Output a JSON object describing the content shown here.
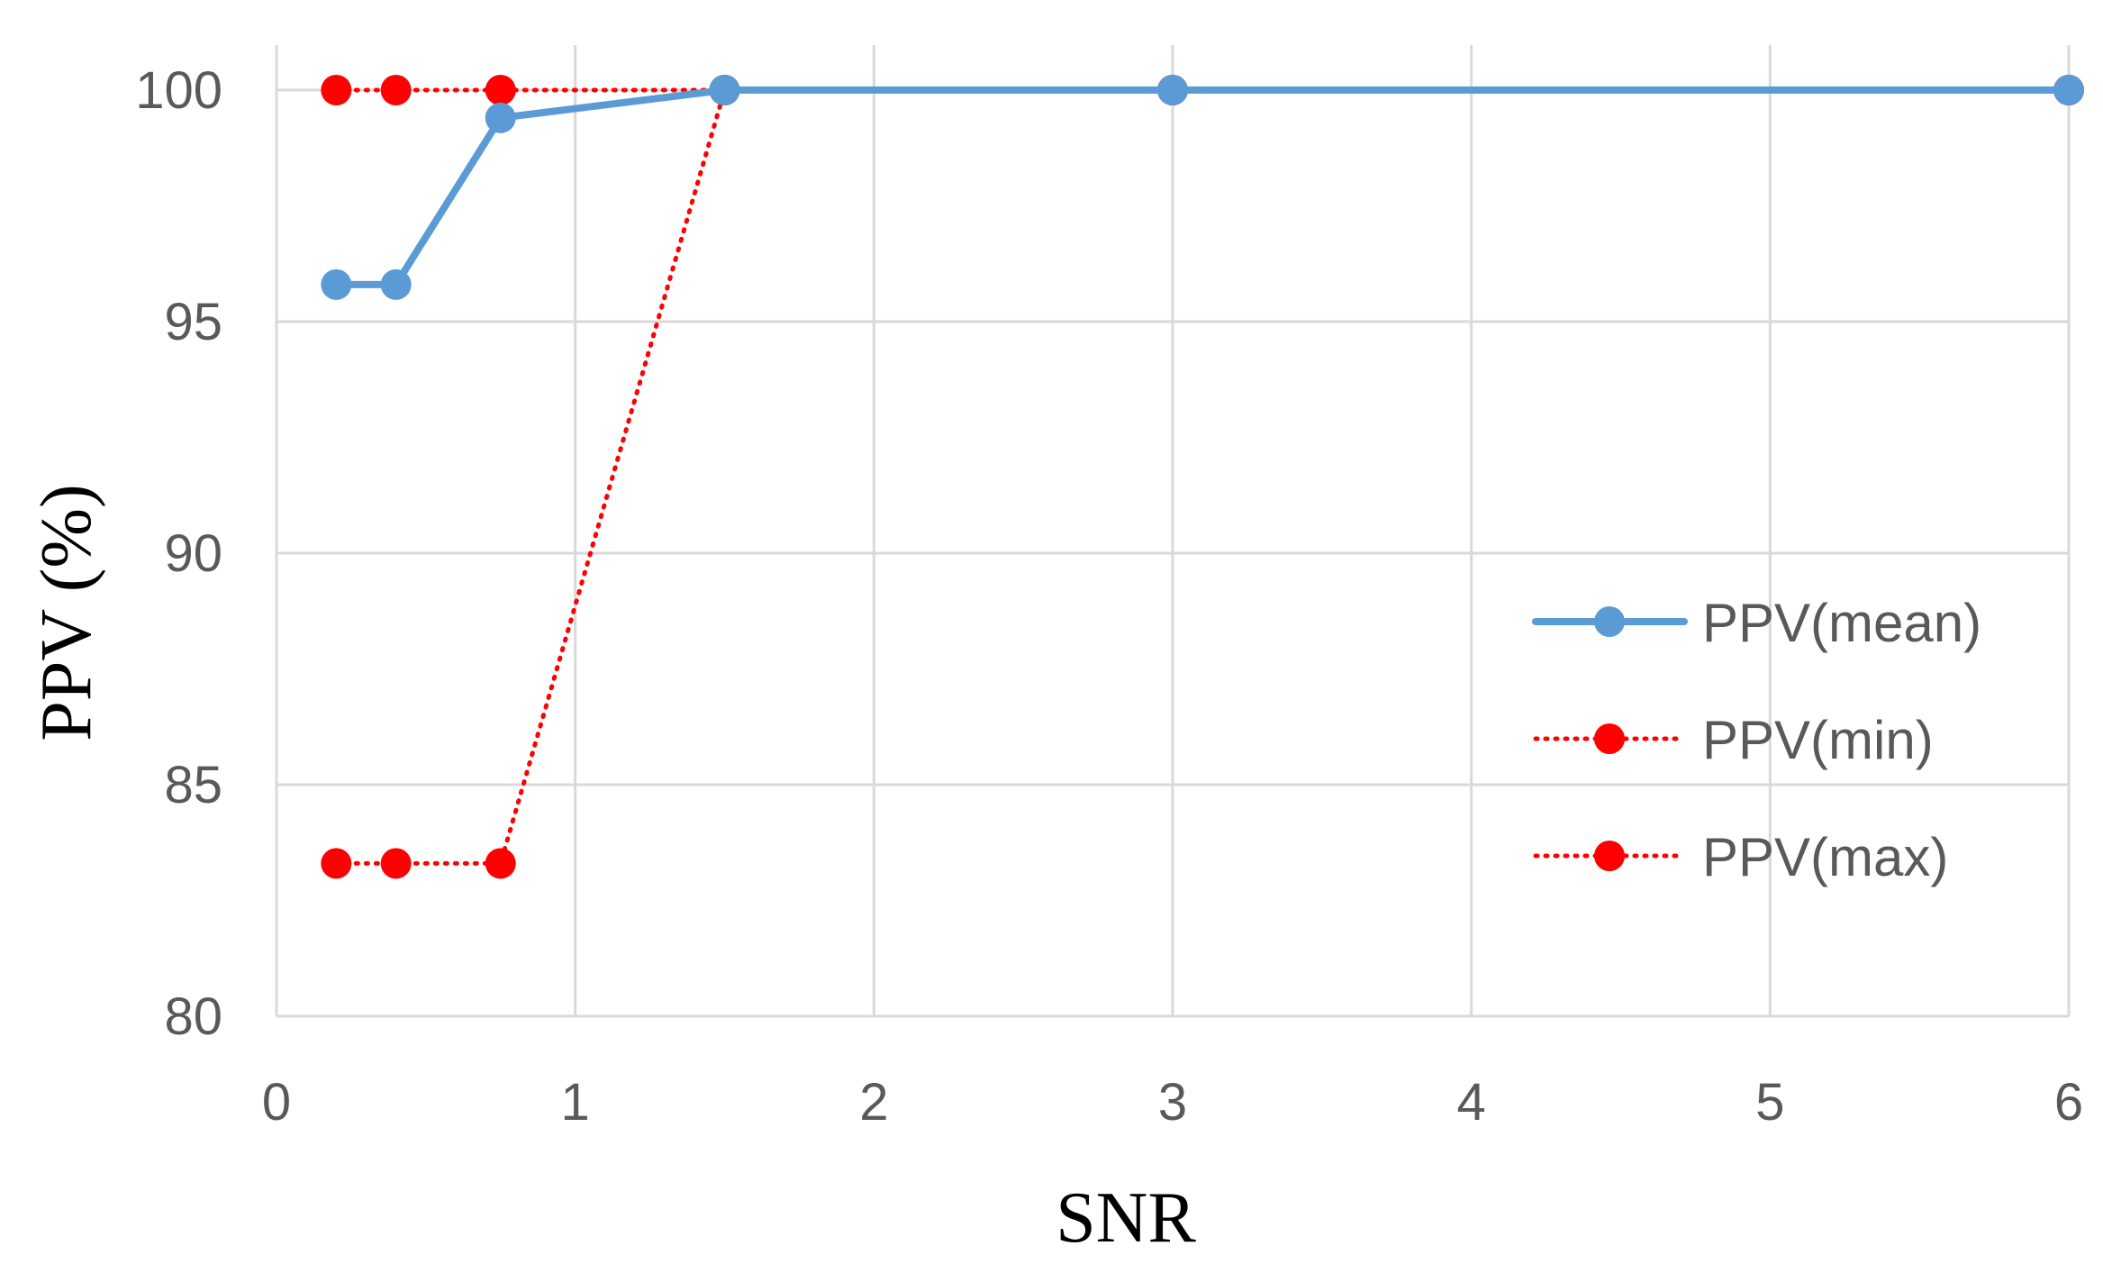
{
  "chart_data": {
    "type": "line",
    "xlabel": "SNR",
    "ylabel": "PPV (%)",
    "xlim": [
      0,
      6
    ],
    "ylim": [
      80,
      100
    ],
    "x_ticks": [
      "0",
      "1",
      "2",
      "3",
      "4",
      "5",
      "6"
    ],
    "y_ticks": [
      "80",
      "85",
      "90",
      "95",
      "100"
    ],
    "grid": true,
    "legend_position": "right",
    "x": [
      0.2,
      0.4,
      0.75,
      1.5,
      3,
      6
    ],
    "series": [
      {
        "name": "PPV(mean)",
        "values": [
          95.8,
          95.8,
          99.4,
          100,
          100,
          100
        ],
        "color": "#5b9bd5",
        "style": "solid"
      },
      {
        "name": "PPV(min)",
        "values": [
          83.3,
          83.3,
          83.3,
          100,
          100,
          100
        ],
        "color": "#ff0000",
        "style": "dotted"
      },
      {
        "name": "PPV(max)",
        "values": [
          100,
          100,
          100,
          100,
          100,
          100
        ],
        "color": "#ff0000",
        "style": "dotted"
      }
    ]
  }
}
